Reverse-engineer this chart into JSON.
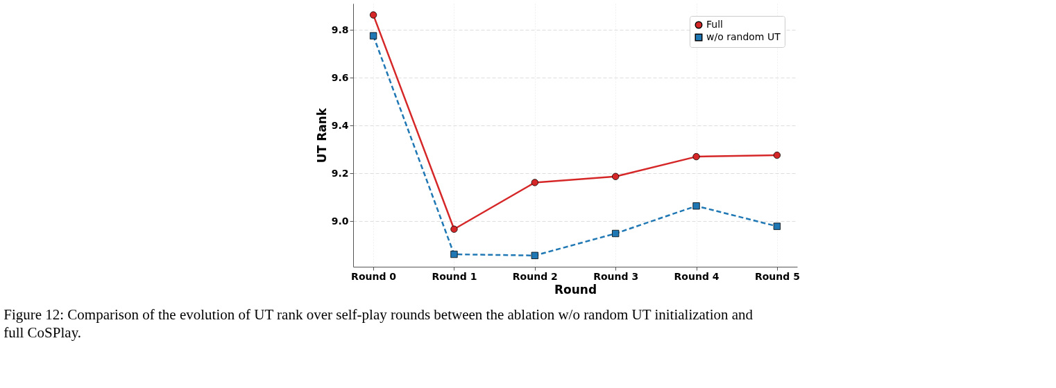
{
  "chart_data": {
    "type": "line",
    "xlabel": "Round",
    "ylabel": "UT Rank",
    "categories": [
      "Round 0",
      "Round 1",
      "Round 2",
      "Round 3",
      "Round 4",
      "Round 5"
    ],
    "series": [
      {
        "name": "Full",
        "color": "#d62728",
        "marker": "circle",
        "line_style": "solid",
        "values": [
          9.862,
          8.967,
          9.162,
          9.187,
          9.27,
          9.276
        ]
      },
      {
        "name": "w/o random UT",
        "color": "#1f77b4",
        "marker": "square",
        "line_style": "dashed",
        "values": [
          9.775,
          8.862,
          8.857,
          8.949,
          9.064,
          8.979
        ]
      }
    ],
    "ylim": [
      8.81,
      9.91
    ],
    "yticks": [
      {
        "value": 9,
        "label": "9.0"
      },
      9.2,
      9.4,
      9.6,
      9.8
    ],
    "grid": true,
    "legend": "top right",
    "annotations": [
      "Figure 12: Comparison of the evolution of UT rank over self-play rounds between the ablation w/o random UT initialization and full CoSPlay."
    ]
  }
}
